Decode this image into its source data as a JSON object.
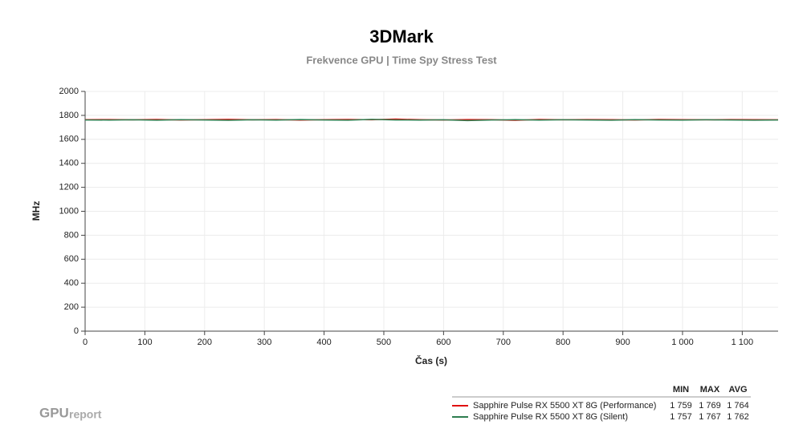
{
  "chart_data": {
    "type": "line",
    "title": "3DMark",
    "subtitle": "Frekvence GPU | Time Spy Stress Test",
    "x_label": "Čas (s)",
    "y_label": "MHz",
    "x": [
      0,
      40,
      80,
      120,
      160,
      200,
      240,
      280,
      320,
      360,
      400,
      440,
      480,
      520,
      560,
      600,
      640,
      680,
      720,
      760,
      800,
      840,
      880,
      920,
      960,
      1000,
      1040,
      1080,
      1120,
      1160
    ],
    "series": [
      {
        "name": "Sapphire Pulse RX 5500 XT 8G (Performance)",
        "color": "#e01010",
        "values": [
          1764,
          1765,
          1763,
          1766,
          1762,
          1764,
          1767,
          1763,
          1765,
          1761,
          1764,
          1766,
          1763,
          1769,
          1764,
          1762,
          1765,
          1764,
          1759,
          1766,
          1763,
          1765,
          1764,
          1762,
          1766,
          1764,
          1763,
          1765,
          1764,
          1763
        ],
        "stats": [
          {
            "value": 1759,
            "label": "1 759"
          },
          {
            "value": 1769,
            "label": "1 769"
          },
          {
            "value": 1764,
            "label": "1 764"
          }
        ]
      },
      {
        "name": "Sapphire Pulse RX 5500 XT 8G (Silent)",
        "color": "#2e7d4f",
        "values": [
          1762,
          1761,
          1763,
          1760,
          1764,
          1762,
          1759,
          1763,
          1761,
          1765,
          1762,
          1760,
          1767,
          1762,
          1761,
          1763,
          1757,
          1762,
          1764,
          1761,
          1763,
          1762,
          1760,
          1764,
          1762,
          1761,
          1763,
          1762,
          1760,
          1762
        ],
        "stats": [
          {
            "value": 1757,
            "label": "1 757"
          },
          {
            "value": 1767,
            "label": "1 767"
          },
          {
            "value": 1762,
            "label": "1 762"
          }
        ]
      }
    ],
    "stats_columns": [
      "MIN",
      "MAX",
      "AVG"
    ],
    "xlim": [
      0,
      1160
    ],
    "xticks": [
      0,
      100,
      200,
      300,
      400,
      500,
      600,
      700,
      800,
      900,
      {
        "value": 1000,
        "label": "1 000"
      },
      {
        "value": 1100,
        "label": "1 100"
      }
    ],
    "ylim": [
      0,
      2000
    ],
    "yticks": [
      0,
      200,
      400,
      600,
      800,
      1000,
      1200,
      1400,
      1600,
      1800,
      2000
    ],
    "grid": true,
    "logo": {
      "bold": "GPU",
      "light": "report"
    }
  }
}
